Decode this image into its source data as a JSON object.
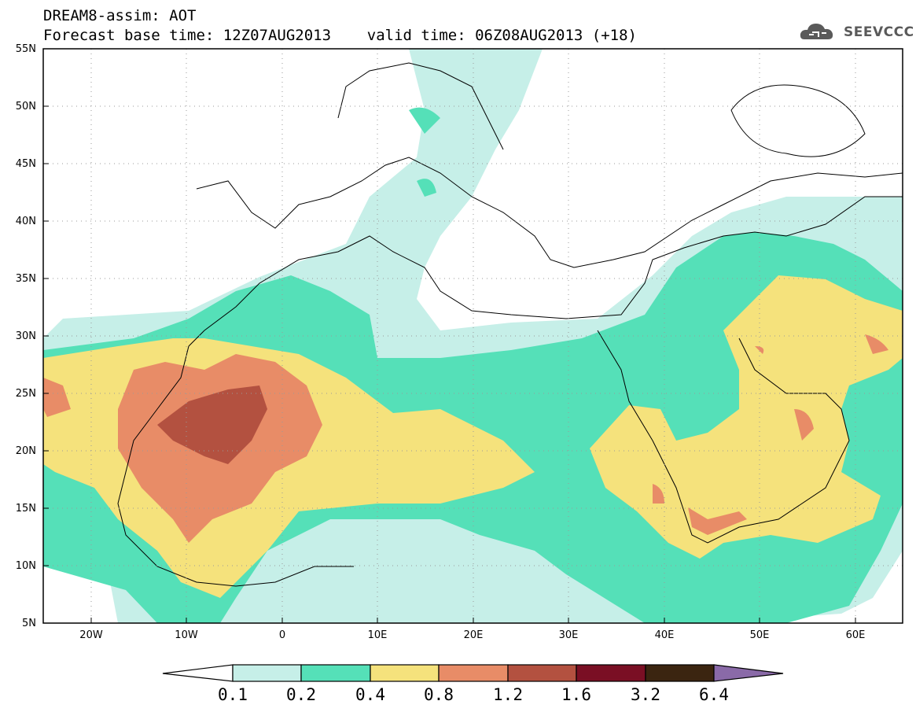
{
  "header": {
    "line1": "DREAM8-assim: AOT",
    "line2": "Forecast base time: 12Z07AUG2013    valid time: 06Z08AUG2013 (+18)"
  },
  "logo": {
    "text": "SEEVCCC",
    "icon": "cloud-icon"
  },
  "map": {
    "variable": "AOT",
    "lat_labels": [
      "55N",
      "50N",
      "45N",
      "40N",
      "35N",
      "30N",
      "25N",
      "20N",
      "15N",
      "10N",
      "5N"
    ],
    "lon_labels": [
      "20W",
      "10W",
      "0",
      "10E",
      "20E",
      "30E",
      "40E",
      "50E",
      "60E"
    ],
    "lat_range": [
      5,
      55
    ],
    "lon_range": [
      -25,
      65
    ],
    "gridlines": "dotted"
  },
  "colorbar": {
    "labels": [
      "0.1",
      "0.2",
      "0.4",
      "0.8",
      "1.2",
      "1.6",
      "3.2",
      "6.4"
    ],
    "colors": [
      "#c6efe8",
      "#55e0b8",
      "#f5e27c",
      "#e88c67",
      "#b35140",
      "#7a0f24",
      "#3b2510",
      "#8a6aa8"
    ]
  },
  "colors": {
    "level1": "#c6efe8",
    "level2": "#55e0b8",
    "level3": "#f5e27c",
    "level4": "#e88c67",
    "level5": "#b35140"
  }
}
